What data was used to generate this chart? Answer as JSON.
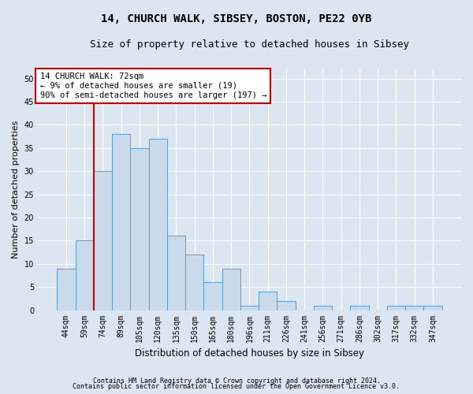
{
  "title_line1": "14, CHURCH WALK, SIBSEY, BOSTON, PE22 0YB",
  "title_line2": "Size of property relative to detached houses in Sibsey",
  "xlabel": "Distribution of detached houses by size in Sibsey",
  "ylabel": "Number of detached properties",
  "categories": [
    "44sqm",
    "59sqm",
    "74sqm",
    "89sqm",
    "105sqm",
    "120sqm",
    "135sqm",
    "150sqm",
    "165sqm",
    "180sqm",
    "196sqm",
    "211sqm",
    "226sqm",
    "241sqm",
    "256sqm",
    "271sqm",
    "286sqm",
    "302sqm",
    "317sqm",
    "332sqm",
    "347sqm"
  ],
  "values": [
    9,
    15,
    30,
    38,
    35,
    37,
    16,
    12,
    6,
    9,
    1,
    4,
    2,
    0,
    1,
    0,
    1,
    0,
    1,
    1,
    1
  ],
  "bar_color": "#c9daea",
  "bar_edge_color": "#5b9bd5",
  "highlight_bar_index": 1,
  "highlight_edge_color": "#cc0000",
  "vline_x": 1.5,
  "annotation_text": "14 CHURCH WALK: 72sqm\n← 9% of detached houses are smaller (19)\n90% of semi-detached houses are larger (197) →",
  "annotation_box_color": "white",
  "annotation_box_edge_color": "#cc0000",
  "ylim": [
    0,
    52
  ],
  "yticks": [
    0,
    5,
    10,
    15,
    20,
    25,
    30,
    35,
    40,
    45,
    50
  ],
  "footnote1": "Contains HM Land Registry data © Crown copyright and database right 2024.",
  "footnote2": "Contains public sector information licensed under the Open Government Licence v3.0.",
  "bg_color": "#dce6f0",
  "grid_color": "white",
  "title1_fontsize": 10,
  "title2_fontsize": 9,
  "tick_fontsize": 7,
  "ylabel_fontsize": 8,
  "xlabel_fontsize": 8.5
}
